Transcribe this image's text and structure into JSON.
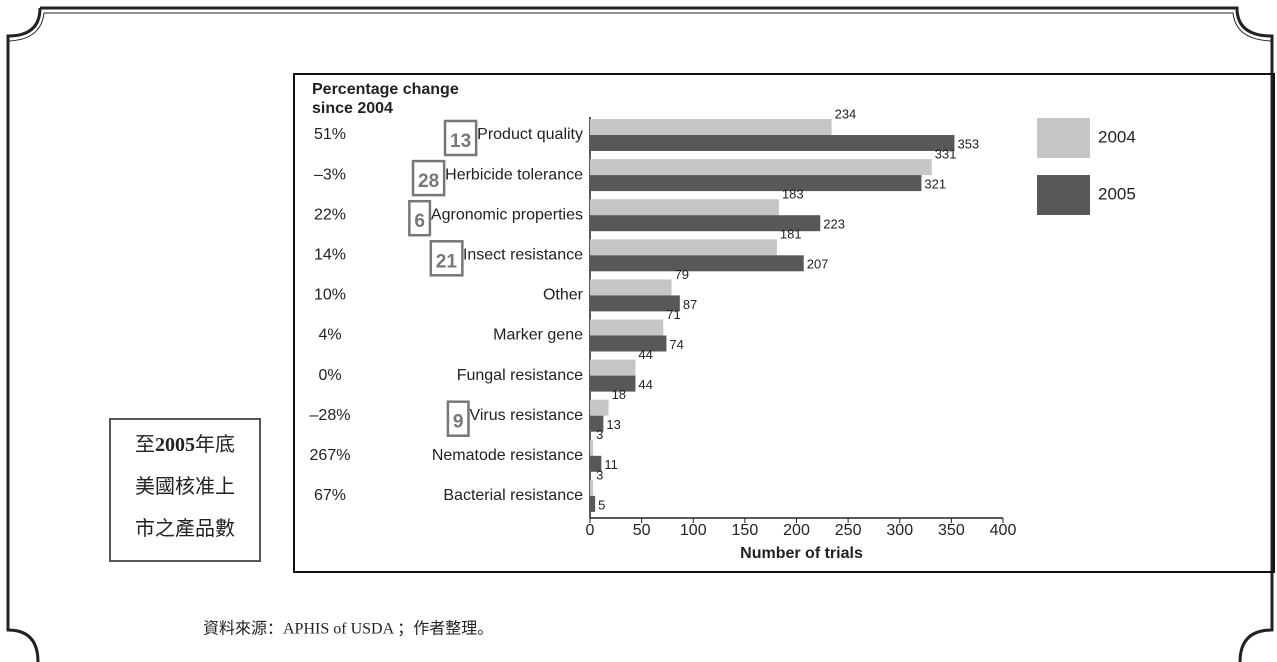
{
  "chart_data": {
    "type": "bar",
    "orientation": "horizontal",
    "column_header": [
      "Percentage change",
      "since 2004"
    ],
    "categories": [
      "Product quality",
      "Herbicide tolerance",
      "Agronomic properties",
      "Insect resistance",
      "Other",
      "Marker gene",
      "Fungal resistance",
      "Virus resistance",
      "Nematode resistance",
      "Bacterial resistance"
    ],
    "percent_change": [
      "51%",
      "–3%",
      "22%",
      "14%",
      "10%",
      "4%",
      "0%",
      "–28%",
      "267%",
      "67%"
    ],
    "approved_products": [
      13,
      28,
      6,
      21,
      null,
      null,
      null,
      9,
      null,
      null
    ],
    "series": [
      {
        "name": "2004",
        "color": "#c6c6c6",
        "values": [
          234,
          331,
          183,
          181,
          79,
          71,
          44,
          18,
          3,
          3
        ]
      },
      {
        "name": "2005",
        "color": "#585858",
        "values": [
          353,
          321,
          223,
          207,
          87,
          74,
          44,
          13,
          11,
          5
        ]
      }
    ],
    "xlim": [
      0,
      400
    ],
    "xticks": [
      0,
      50,
      100,
      150,
      200,
      250,
      300,
      350,
      400
    ],
    "xlabel": "Number of trials",
    "grid": false,
    "legend": "right"
  },
  "side_note": [
    [
      "至",
      "2005",
      "年底"
    ],
    [
      "美國核准上"
    ],
    [
      "市之產品數"
    ]
  ],
  "source": "資料來源：APHIS of USDA ；作者整理。"
}
